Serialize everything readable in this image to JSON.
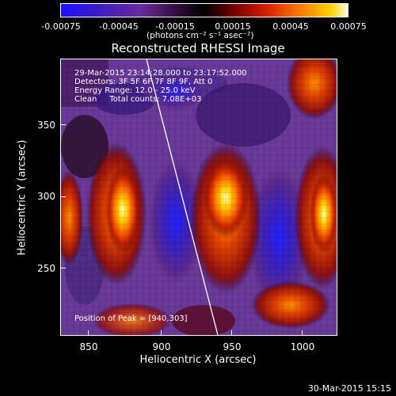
{
  "colorbar": {
    "ticks": [
      "-0.00075",
      "-0.00045",
      "-0.00015",
      "0.00015",
      "0.00045",
      "0.00075"
    ],
    "units": "(photons cm⁻² s⁻¹ asec⁻²)"
  },
  "title": "Reconstructed RHESSI Image",
  "annotations": {
    "time_range": "29-Mar-2015 23:14:28.000 to 23:17:52.000",
    "detectors": "Detectors: 3F 5F 6F 7F 8F 9F, Att 0",
    "energy_range": "Energy Range: 12.0 - 25.0 keV",
    "clean": "Clean     Total counts: 7.08E+03",
    "peak": "Position of Peak = [940,303]"
  },
  "axes": {
    "xlabel": "Heliocentric X (arcsec)",
    "ylabel": "Heliocentric Y (arcsec)",
    "xticks": [
      "850",
      "900",
      "950",
      "1000"
    ],
    "yticks": [
      "250",
      "300",
      "350"
    ]
  },
  "timestamp": "30-Mar-2015 15:15",
  "colors": {
    "colormap": [
      "#1010ff",
      "#3a1aa8",
      "#5a2a80",
      "#7b3a9a",
      "#000000",
      "#8b0000",
      "#d02000",
      "#ff6a00",
      "#ffc000",
      "#ffffc0"
    ],
    "limb_line": "#ffffff"
  }
}
